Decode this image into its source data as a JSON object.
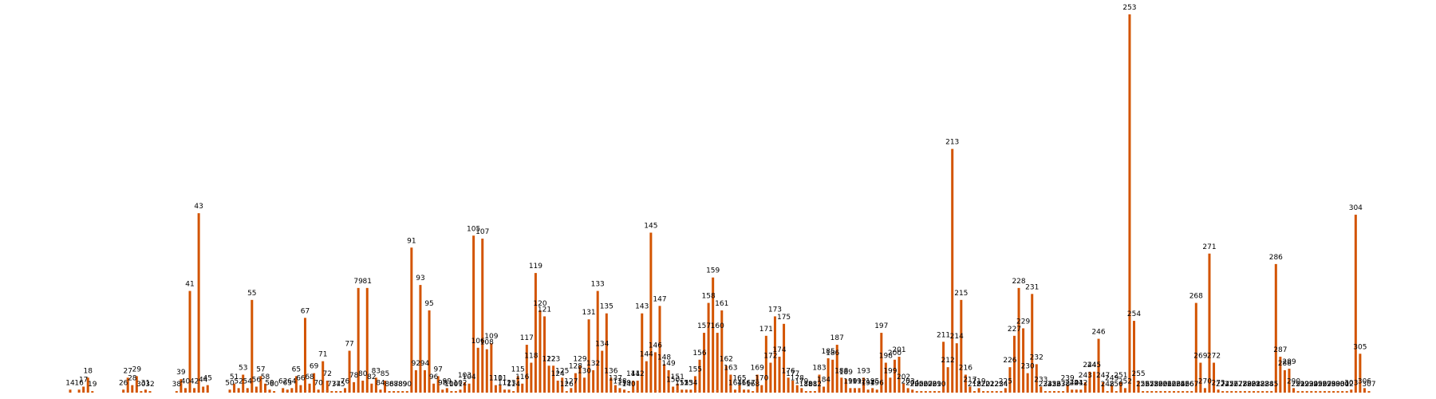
{
  "chart_data": {
    "type": "bar",
    "title": "",
    "xlabel": "",
    "ylabel": "",
    "grid": false,
    "bar_color": "#d35400",
    "ylim": [
      0,
      253
    ],
    "bars": [
      {
        "label": "14",
        "value": 2
      },
      {
        "label": "16",
        "value": 2
      },
      {
        "label": "17",
        "value": 4
      },
      {
        "label": "18",
        "value": 10
      },
      {
        "label": "19",
        "value": 1
      },
      {
        "label": "26",
        "value": 2
      },
      {
        "label": "27",
        "value": 10
      },
      {
        "label": "28",
        "value": 5
      },
      {
        "label": "29",
        "value": 11
      },
      {
        "label": "30",
        "value": 1
      },
      {
        "label": "31",
        "value": 2
      },
      {
        "label": "32",
        "value": 1
      },
      {
        "label": "38",
        "value": 1
      },
      {
        "label": "39",
        "value": 9
      },
      {
        "label": "40",
        "value": 3
      },
      {
        "label": "41",
        "value": 68
      },
      {
        "label": "42",
        "value": 3
      },
      {
        "label": "43",
        "value": 120
      },
      {
        "label": "44",
        "value": 4
      },
      {
        "label": "45",
        "value": 5
      },
      {
        "label": "50",
        "value": 2
      },
      {
        "label": "51",
        "value": 6
      },
      {
        "label": "52",
        "value": 3
      },
      {
        "label": "53",
        "value": 12
      },
      {
        "label": "54",
        "value": 3
      },
      {
        "label": "55",
        "value": 62
      },
      {
        "label": "56",
        "value": 4
      },
      {
        "label": "57",
        "value": 11
      },
      {
        "label": "58",
        "value": 6
      },
      {
        "label": "59",
        "value": 2
      },
      {
        "label": "60",
        "value": 1
      },
      {
        "label": "62",
        "value": 3
      },
      {
        "label": "63",
        "value": 2
      },
      {
        "label": "64",
        "value": 3
      },
      {
        "label": "65",
        "value": 11
      },
      {
        "label": "66",
        "value": 5
      },
      {
        "label": "67",
        "value": 50
      },
      {
        "label": "68",
        "value": 6
      },
      {
        "label": "69",
        "value": 13
      },
      {
        "label": "70",
        "value": 2
      },
      {
        "label": "71",
        "value": 21
      },
      {
        "label": "72",
        "value": 8
      },
      {
        "label": "73",
        "value": 1
      },
      {
        "label": "74",
        "value": 1
      },
      {
        "label": "75",
        "value": 1
      },
      {
        "label": "76",
        "value": 3
      },
      {
        "label": "77",
        "value": 28
      },
      {
        "label": "78",
        "value": 7
      },
      {
        "label": "79",
        "value": 70
      },
      {
        "label": "80",
        "value": 8
      },
      {
        "label": "81",
        "value": 70
      },
      {
        "label": "82",
        "value": 6
      },
      {
        "label": "83",
        "value": 10
      },
      {
        "label": "84",
        "value": 2
      },
      {
        "label": "85",
        "value": 8
      },
      {
        "label": "86",
        "value": 1
      },
      {
        "label": "87",
        "value": 1
      },
      {
        "label": "88",
        "value": 1
      },
      {
        "label": "89",
        "value": 1
      },
      {
        "label": "90",
        "value": 1
      },
      {
        "label": "91",
        "value": 97
      },
      {
        "label": "92",
        "value": 15
      },
      {
        "label": "93",
        "value": 72
      },
      {
        "label": "94",
        "value": 15
      },
      {
        "label": "95",
        "value": 55
      },
      {
        "label": "96",
        "value": 6
      },
      {
        "label": "97",
        "value": 11
      },
      {
        "label": "98",
        "value": 2
      },
      {
        "label": "99",
        "value": 3
      },
      {
        "label": "100",
        "value": 1
      },
      {
        "label": "101",
        "value": 1
      },
      {
        "label": "102",
        "value": 2
      },
      {
        "label": "103",
        "value": 7
      },
      {
        "label": "104",
        "value": 6
      },
      {
        "label": "105",
        "value": 105
      },
      {
        "label": "106",
        "value": 30
      },
      {
        "label": "107",
        "value": 103
      },
      {
        "label": "108",
        "value": 29
      },
      {
        "label": "109",
        "value": 33
      },
      {
        "label": "110",
        "value": 5
      },
      {
        "label": "111",
        "value": 5
      },
      {
        "label": "112",
        "value": 2
      },
      {
        "label": "113",
        "value": 2
      },
      {
        "label": "114",
        "value": 1
      },
      {
        "label": "115",
        "value": 11
      },
      {
        "label": "116",
        "value": 6
      },
      {
        "label": "117",
        "value": 32
      },
      {
        "label": "118",
        "value": 20
      },
      {
        "label": "119",
        "value": 80
      },
      {
        "label": "120",
        "value": 55
      },
      {
        "label": "121",
        "value": 51
      },
      {
        "label": "122",
        "value": 18
      },
      {
        "label": "123",
        "value": 18
      },
      {
        "label": "124",
        "value": 8
      },
      {
        "label": "125",
        "value": 10
      },
      {
        "label": "126",
        "value": 1
      },
      {
        "label": "127",
        "value": 3
      },
      {
        "label": "128",
        "value": 13
      },
      {
        "label": "129",
        "value": 18
      },
      {
        "label": "130",
        "value": 10
      },
      {
        "label": "131",
        "value": 49
      },
      {
        "label": "132",
        "value": 15
      },
      {
        "label": "133",
        "value": 68
      },
      {
        "label": "134",
        "value": 28
      },
      {
        "label": "135",
        "value": 53
      },
      {
        "label": "136",
        "value": 10
      },
      {
        "label": "137",
        "value": 5
      },
      {
        "label": "138",
        "value": 3
      },
      {
        "label": "139",
        "value": 2
      },
      {
        "label": "140",
        "value": 1
      },
      {
        "label": "141",
        "value": 8
      },
      {
        "label": "142",
        "value": 8
      },
      {
        "label": "143",
        "value": 53
      },
      {
        "label": "144",
        "value": 21
      },
      {
        "label": "145",
        "value": 107
      },
      {
        "label": "146",
        "value": 27
      },
      {
        "label": "147",
        "value": 58
      },
      {
        "label": "148",
        "value": 19
      },
      {
        "label": "149",
        "value": 15
      },
      {
        "label": "150",
        "value": 4
      },
      {
        "label": "151",
        "value": 6
      },
      {
        "label": "152",
        "value": 2
      },
      {
        "label": "153",
        "value": 2
      },
      {
        "label": "154",
        "value": 2
      },
      {
        "label": "155",
        "value": 11
      },
      {
        "label": "156",
        "value": 22
      },
      {
        "label": "157",
        "value": 40
      },
      {
        "label": "158",
        "value": 60
      },
      {
        "label": "159",
        "value": 77
      },
      {
        "label": "160",
        "value": 40
      },
      {
        "label": "161",
        "value": 55
      },
      {
        "label": "162",
        "value": 18
      },
      {
        "label": "163",
        "value": 12
      },
      {
        "label": "164",
        "value": 2
      },
      {
        "label": "165",
        "value": 5
      },
      {
        "label": "166",
        "value": 2
      },
      {
        "label": "167",
        "value": 2
      },
      {
        "label": "168",
        "value": 1
      },
      {
        "label": "169",
        "value": 12
      },
      {
        "label": "170",
        "value": 5
      },
      {
        "label": "171",
        "value": 38
      },
      {
        "label": "172",
        "value": 20
      },
      {
        "label": "173",
        "value": 51
      },
      {
        "label": "174",
        "value": 24
      },
      {
        "label": "175",
        "value": 46
      },
      {
        "label": "176",
        "value": 10
      },
      {
        "label": "177",
        "value": 8
      },
      {
        "label": "178",
        "value": 5
      },
      {
        "label": "179",
        "value": 3
      },
      {
        "label": "180",
        "value": 1
      },
      {
        "label": "181",
        "value": 1
      },
      {
        "label": "182",
        "value": 1
      },
      {
        "label": "183",
        "value": 12
      },
      {
        "label": "184",
        "value": 4
      },
      {
        "label": "185",
        "value": 23
      },
      {
        "label": "186",
        "value": 22
      },
      {
        "label": "187",
        "value": 32
      },
      {
        "label": "188",
        "value": 10
      },
      {
        "label": "189",
        "value": 9
      },
      {
        "label": "190",
        "value": 3
      },
      {
        "label": "191",
        "value": 3
      },
      {
        "label": "192",
        "value": 3
      },
      {
        "label": "193",
        "value": 10
      },
      {
        "label": "194",
        "value": 2
      },
      {
        "label": "195",
        "value": 3
      },
      {
        "label": "196",
        "value": 2
      },
      {
        "label": "197",
        "value": 40
      },
      {
        "label": "198",
        "value": 20
      },
      {
        "label": "199",
        "value": 10
      },
      {
        "label": "200",
        "value": 22
      },
      {
        "label": "201",
        "value": 24
      },
      {
        "label": "202",
        "value": 6
      },
      {
        "label": "203",
        "value": 3
      },
      {
        "label": "204",
        "value": 2
      },
      {
        "label": "205",
        "value": 1
      },
      {
        "label": "206",
        "value": 1
      },
      {
        "label": "207",
        "value": 1
      },
      {
        "label": "208",
        "value": 1
      },
      {
        "label": "209",
        "value": 1
      },
      {
        "label": "210",
        "value": 1
      },
      {
        "label": "211",
        "value": 34
      },
      {
        "label": "212",
        "value": 17
      },
      {
        "label": "213",
        "value": 163
      },
      {
        "label": "214",
        "value": 33
      },
      {
        "label": "215",
        "value": 62
      },
      {
        "label": "216",
        "value": 12
      },
      {
        "label": "217",
        "value": 4
      },
      {
        "label": "218",
        "value": 1
      },
      {
        "label": "219",
        "value": 3
      },
      {
        "label": "220",
        "value": 1
      },
      {
        "label": "221",
        "value": 1
      },
      {
        "label": "222",
        "value": 1
      },
      {
        "label": "223",
        "value": 1
      },
      {
        "label": "224",
        "value": 1
      },
      {
        "label": "225",
        "value": 3
      },
      {
        "label": "226",
        "value": 17
      },
      {
        "label": "227",
        "value": 38
      },
      {
        "label": "228",
        "value": 70
      },
      {
        "label": "229",
        "value": 43
      },
      {
        "label": "230",
        "value": 13
      },
      {
        "label": "231",
        "value": 66
      },
      {
        "label": "232",
        "value": 19
      },
      {
        "label": "233",
        "value": 4
      },
      {
        "label": "234",
        "value": 1
      },
      {
        "label": "235",
        "value": 1
      },
      {
        "label": "236",
        "value": 1
      },
      {
        "label": "237",
        "value": 1
      },
      {
        "label": "238",
        "value": 1
      },
      {
        "label": "239",
        "value": 5
      },
      {
        "label": "240",
        "value": 2
      },
      {
        "label": "241",
        "value": 2
      },
      {
        "label": "242",
        "value": 2
      },
      {
        "label": "243",
        "value": 7
      },
      {
        "label": "244",
        "value": 14
      },
      {
        "label": "245",
        "value": 14
      },
      {
        "label": "246",
        "value": 36
      },
      {
        "label": "247",
        "value": 7
      },
      {
        "label": "248",
        "value": 1
      },
      {
        "label": "249",
        "value": 5
      },
      {
        "label": "250",
        "value": 1
      },
      {
        "label": "251",
        "value": 7
      },
      {
        "label": "252",
        "value": 3
      },
      {
        "label": "253",
        "value": 253
      },
      {
        "label": "254",
        "value": 48
      },
      {
        "label": "255",
        "value": 8
      },
      {
        "label": "256",
        "value": 1
      },
      {
        "label": "257",
        "value": 1
      },
      {
        "label": "258",
        "value": 1
      },
      {
        "label": "259",
        "value": 1
      },
      {
        "label": "260",
        "value": 1
      },
      {
        "label": "261",
        "value": 1
      },
      {
        "label": "262",
        "value": 1
      },
      {
        "label": "263",
        "value": 1
      },
      {
        "label": "264",
        "value": 1
      },
      {
        "label": "265",
        "value": 1
      },
      {
        "label": "266",
        "value": 1
      },
      {
        "label": "267",
        "value": 1
      },
      {
        "label": "268",
        "value": 60
      },
      {
        "label": "269",
        "value": 20
      },
      {
        "label": "270",
        "value": 3
      },
      {
        "label": "271",
        "value": 93
      },
      {
        "label": "272",
        "value": 20
      },
      {
        "label": "273",
        "value": 2
      },
      {
        "label": "274",
        "value": 1
      },
      {
        "label": "275",
        "value": 1
      },
      {
        "label": "276",
        "value": 1
      },
      {
        "label": "277",
        "value": 1
      },
      {
        "label": "278",
        "value": 1
      },
      {
        "label": "279",
        "value": 1
      },
      {
        "label": "280",
        "value": 1
      },
      {
        "label": "281",
        "value": 1
      },
      {
        "label": "282",
        "value": 1
      },
      {
        "label": "283",
        "value": 1
      },
      {
        "label": "284",
        "value": 1
      },
      {
        "label": "285",
        "value": 1
      },
      {
        "label": "286",
        "value": 86
      },
      {
        "label": "287",
        "value": 24
      },
      {
        "label": "288",
        "value": 15
      },
      {
        "label": "289",
        "value": 16
      },
      {
        "label": "290",
        "value": 3
      },
      {
        "label": "291",
        "value": 1
      },
      {
        "label": "292",
        "value": 1
      },
      {
        "label": "293",
        "value": 1
      },
      {
        "label": "294",
        "value": 1
      },
      {
        "label": "295",
        "value": 1
      },
      {
        "label": "296",
        "value": 1
      },
      {
        "label": "297",
        "value": 1
      },
      {
        "label": "298",
        "value": 1
      },
      {
        "label": "299",
        "value": 1
      },
      {
        "label": "300",
        "value": 1
      },
      {
        "label": "301",
        "value": 1
      },
      {
        "label": "302",
        "value": 1
      },
      {
        "label": "303",
        "value": 2
      },
      {
        "label": "304",
        "value": 119
      },
      {
        "label": "305",
        "value": 26
      },
      {
        "label": "306",
        "value": 3
      },
      {
        "label": "307",
        "value": 1
      }
    ]
  }
}
